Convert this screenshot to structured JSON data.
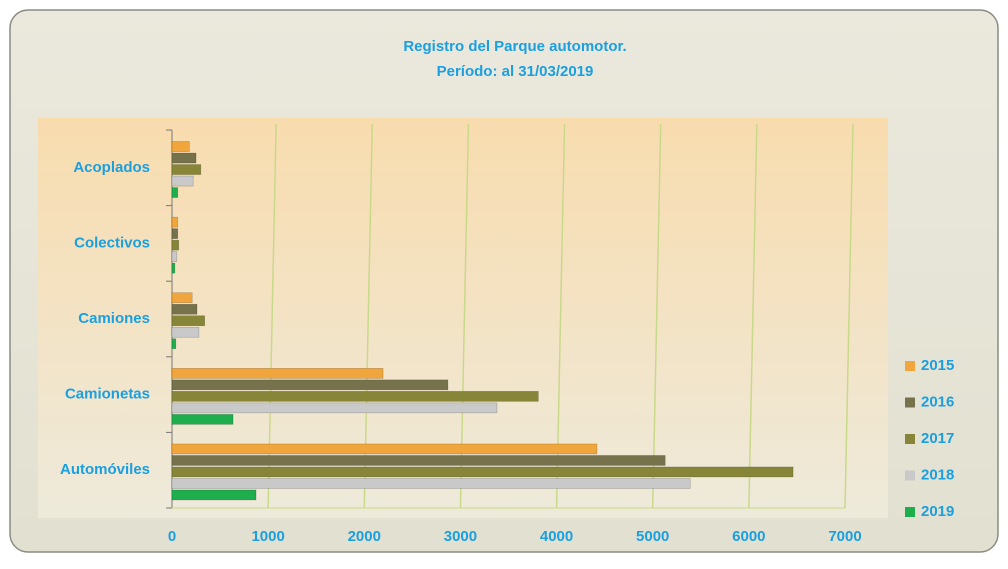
{
  "chart_data": {
    "type": "bar",
    "orientation": "horizontal",
    "title": "Registro del Parque automotor.",
    "subtitle": "Período: al 31/03/2019",
    "categories": [
      "Automóviles",
      "Camionetas",
      "Camiones",
      "Colectivos",
      "Acoplados"
    ],
    "series": [
      {
        "name": "2015",
        "color": "#f0a63c",
        "values": [
          4420,
          2195,
          210,
          60,
          180
        ]
      },
      {
        "name": "2016",
        "color": "#76724c",
        "values": [
          5130,
          2870,
          260,
          60,
          250
        ]
      },
      {
        "name": "2017",
        "color": "#878638",
        "values": [
          6460,
          3810,
          340,
          70,
          300
        ]
      },
      {
        "name": "2018",
        "color": "#c9c9c9",
        "values": [
          5390,
          3380,
          280,
          50,
          220
        ]
      },
      {
        "name": "2019",
        "color": "#1eae4e",
        "values": [
          874,
          635,
          40,
          30,
          60
        ]
      }
    ],
    "xlim": [
      0,
      7000
    ],
    "xticks": [
      0,
      1000,
      2000,
      3000,
      4000,
      5000,
      6000,
      7000
    ],
    "grid": true,
    "legend": "right"
  }
}
